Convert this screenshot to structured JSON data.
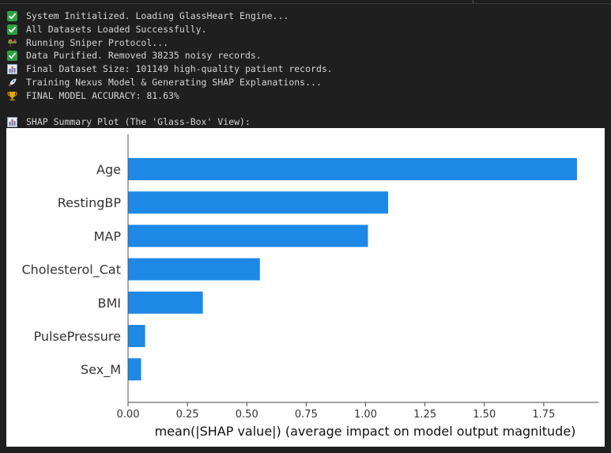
{
  "console": {
    "lines": [
      {
        "icon": "check-icon",
        "text": "System Initialized. Loading GlassHeart Engine..."
      },
      {
        "icon": "check-icon",
        "text": "All Datasets Loaded Successfully."
      },
      {
        "icon": "sniper-icon",
        "text": "Running Sniper Protocol..."
      },
      {
        "icon": "check-icon",
        "text": "Data Purified. Removed 38235 noisy records."
      },
      {
        "icon": "bar-chart-icon",
        "text": "Final Dataset Size: 101149 high-quality patient records."
      },
      {
        "icon": "rocket-icon",
        "text": "Training Nexus Model & Generating SHAP Explanations..."
      },
      {
        "icon": "trophy-icon",
        "text": "FINAL MODEL ACCURACY: 81.63%"
      },
      {
        "icon": "bar-chart-icon",
        "text": "SHAP Summary Plot (The 'Glass-Box' View):"
      }
    ]
  },
  "colors": {
    "bar": "#1e88e5",
    "check": "#2ea043",
    "chart_icon": "#3b7dd8",
    "trophy": "#e0a800",
    "background": "#1f1f1f"
  },
  "chart_data": {
    "type": "bar",
    "orientation": "horizontal",
    "categories": [
      "Age",
      "RestingBP",
      "MAP",
      "Cholesterol_Cat",
      "BMI",
      "PulsePressure",
      "Sex_M"
    ],
    "values": [
      1.89,
      1.095,
      1.01,
      0.555,
      0.315,
      0.072,
      0.055
    ],
    "xlabel": "mean(|SHAP value|) (average impact on model output magnitude)",
    "ylabel": "",
    "xticks": [
      "0.00",
      "0.25",
      "0.50",
      "0.75",
      "1.00",
      "1.25",
      "1.50",
      "1.75"
    ],
    "xlim": [
      0,
      1.98
    ],
    "grid": false
  }
}
